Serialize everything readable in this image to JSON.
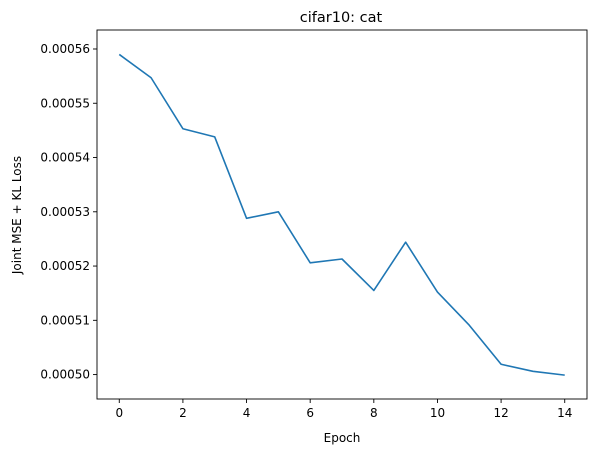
{
  "chart_data": {
    "type": "line",
    "title": "cifar10: cat",
    "xlabel": "Epoch",
    "ylabel": "Joint MSE + KL Loss",
    "x": [
      0,
      1,
      2,
      3,
      4,
      5,
      6,
      7,
      8,
      9,
      10,
      11,
      12,
      13,
      14
    ],
    "series": [
      {
        "values": [
          0.000559,
          0.0005547,
          0.0005453,
          0.0005438,
          0.0005288,
          0.00053,
          0.0005206,
          0.0005213,
          0.0005155,
          0.0005244,
          0.0005152,
          0.0005091,
          0.0005019,
          0.0005006,
          0.0004999
        ],
        "color": "#1f77b4"
      }
    ],
    "xticks": [
      0,
      2,
      4,
      6,
      8,
      10,
      12,
      14
    ],
    "xtick_labels": [
      "0",
      "2",
      "4",
      "6",
      "8",
      "10",
      "12",
      "14"
    ],
    "yticks": [
      0.0005,
      0.00051,
      0.00052,
      0.00053,
      0.00054,
      0.00055,
      0.00056
    ],
    "ytick_labels": [
      "0.00050",
      "0.00051",
      "0.00052",
      "0.00053",
      "0.00054",
      "0.00055",
      "0.00056"
    ],
    "xlim": [
      -0.7,
      14.7
    ],
    "ylim": [
      0.0004955,
      0.0005635
    ],
    "grid": false,
    "legend": false
  }
}
